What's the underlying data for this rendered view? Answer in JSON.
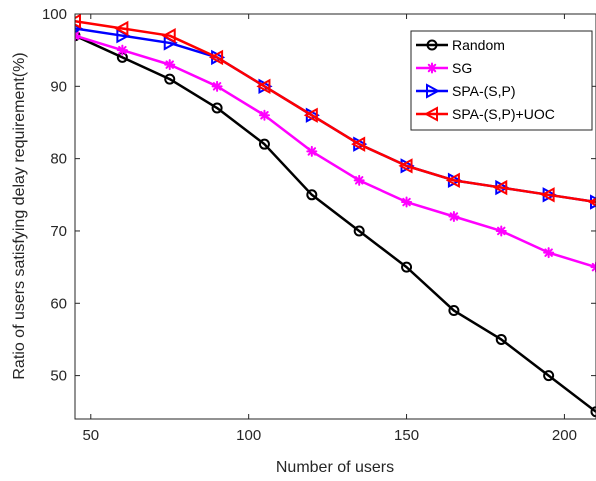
{
  "chart_data": {
    "type": "line",
    "title": "",
    "xlabel": "Number of users",
    "ylabel": "Ratio of users satisfying delay requirement(%)",
    "xlim": [
      45,
      210
    ],
    "ylim": [
      44,
      100
    ],
    "xticks": [
      50,
      100,
      150,
      200
    ],
    "yticks": [
      50,
      60,
      70,
      80,
      90,
      100
    ],
    "grid": false,
    "legend_position": "top-right",
    "x": [
      45,
      60,
      75,
      90,
      105,
      120,
      135,
      150,
      165,
      180,
      195,
      210
    ],
    "series": [
      {
        "name": "Random",
        "color": "#000000",
        "marker": "circle",
        "values": [
          97,
          94,
          91,
          87,
          82,
          75,
          70,
          65,
          59,
          55,
          50,
          45
        ]
      },
      {
        "name": "SG",
        "color": "#ff00ff",
        "marker": "asterisk",
        "values": [
          97,
          95,
          93,
          90,
          86,
          81,
          77,
          74,
          72,
          70,
          67,
          65
        ]
      },
      {
        "name": "SPA-(S,P)",
        "color": "#0000ff",
        "marker": "triangle-right",
        "values": [
          98,
          97,
          96,
          94,
          90,
          86,
          82,
          79,
          77,
          76,
          75,
          74
        ]
      },
      {
        "name": "SPA-(S,P)+UOC",
        "color": "#ff0000",
        "marker": "triangle-left",
        "values": [
          99,
          98,
          97,
          94,
          90,
          86,
          82,
          79,
          77,
          76,
          75,
          74
        ]
      }
    ]
  }
}
